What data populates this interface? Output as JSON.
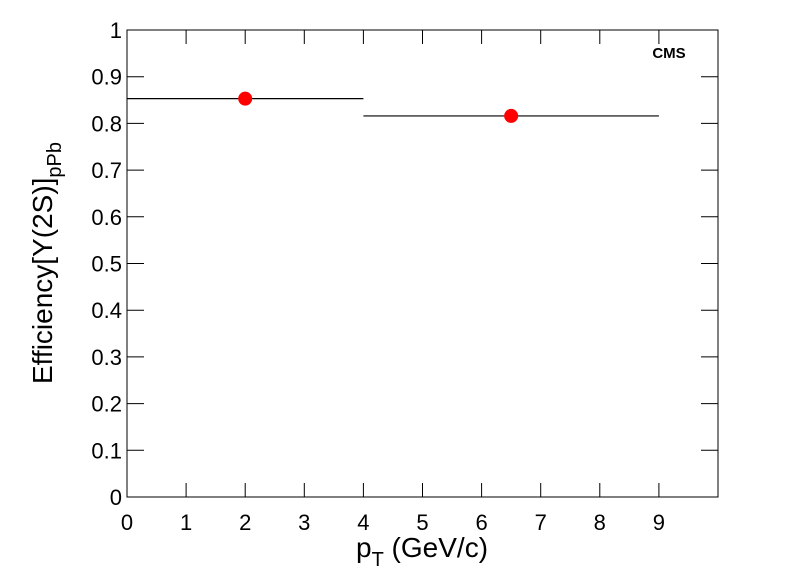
{
  "chart_data": {
    "type": "scatter",
    "annotation": "CMS",
    "xlabel": {
      "main": "p",
      "sub": "T",
      "rest": " (GeV/c)"
    },
    "ylabel": {
      "main": "Efficiency[",
      "symbol": "Υ",
      "rest": "(2S)]",
      "sub": "pPb"
    },
    "xlim": [
      0,
      10
    ],
    "xticks": [
      0,
      1,
      2,
      3,
      4,
      5,
      6,
      7,
      8,
      9
    ],
    "ylim": [
      0,
      1
    ],
    "yticks": [
      0,
      0.1,
      0.2,
      0.3,
      0.4,
      0.5,
      0.6,
      0.7,
      0.8,
      0.9,
      1
    ],
    "series": [
      {
        "color": "#ff0000",
        "x": [
          2,
          6.5
        ],
        "x_err": [
          2,
          2.5
        ],
        "values": [
          0.853,
          0.816
        ]
      }
    ]
  }
}
